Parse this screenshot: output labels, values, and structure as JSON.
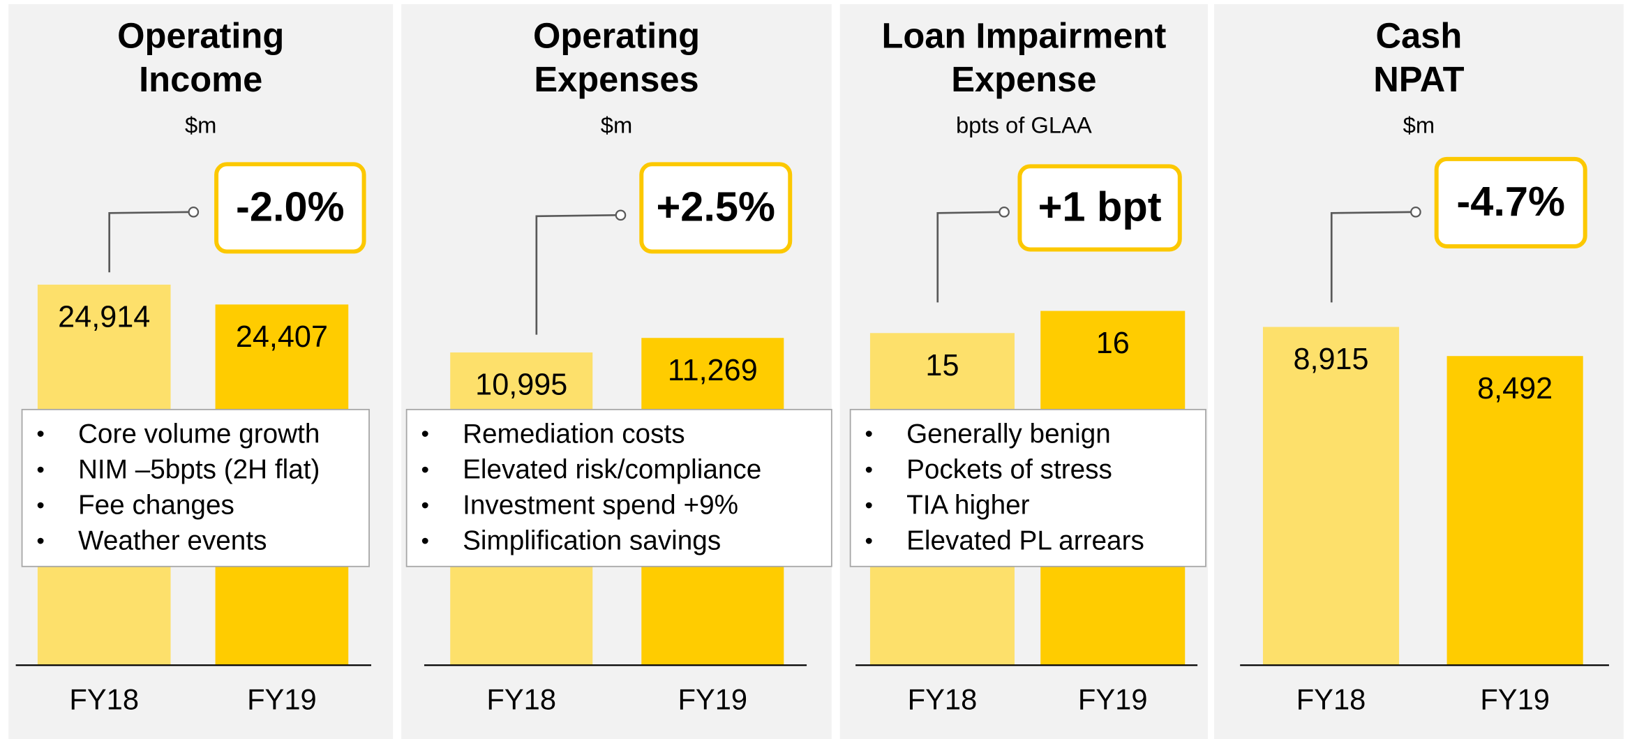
{
  "chart_data": [
    {
      "type": "bar",
      "title": [
        "Operating",
        "Income"
      ],
      "subtitle": "$m",
      "categories": [
        "FY18",
        "FY19"
      ],
      "values": [
        24914,
        24407
      ],
      "value_labels": [
        "24,914",
        "24,407"
      ],
      "colors": [
        "#fde06b",
        "#ffcc00"
      ],
      "ylim": [
        15200,
        28200
      ],
      "change": "-2.0%",
      "notes": [
        "Core volume growth",
        "NIM –5bpts (2H flat)",
        "Fee changes",
        "Weather events"
      ]
    },
    {
      "type": "bar",
      "title": [
        "Operating",
        "Expenses"
      ],
      "subtitle": "$m",
      "categories": [
        "FY18",
        "FY19"
      ],
      "values": [
        10995,
        11269
      ],
      "value_labels": [
        "10,995",
        "11,269"
      ],
      "colors": [
        "#fde06b",
        "#ffcc00"
      ],
      "ylim": [
        5100,
        14700
      ],
      "change": "+2.5%",
      "notes": [
        "Remediation costs",
        "Elevated risk/compliance",
        "Investment spend +9%",
        "Simplification savings"
      ]
    },
    {
      "type": "bar",
      "title": [
        "Loan Impairment",
        "Expense"
      ],
      "subtitle": "bpts of GLAA",
      "categories": [
        "FY18",
        "FY19"
      ],
      "values": [
        15,
        16
      ],
      "colors": [
        "#fde06b",
        "#ffcc00"
      ],
      "ylim": [
        0,
        23
      ],
      "change": "+1 bpt",
      "notes": [
        "Generally benign",
        "Pockets of stress",
        "TIA higher",
        "Elevated PL arrears"
      ]
    },
    {
      "type": "bar",
      "title": [
        "Cash",
        "NPAT"
      ],
      "subtitle": "$m",
      "categories": [
        "FY18",
        "FY19"
      ],
      "values": [
        8915,
        8492
      ],
      "value_labels": [
        "8,915",
        "8,492"
      ],
      "colors": [
        "#fde06b",
        "#ffcc00"
      ],
      "ylim": [
        4000,
        11400
      ],
      "change": "-4.7%"
    }
  ]
}
